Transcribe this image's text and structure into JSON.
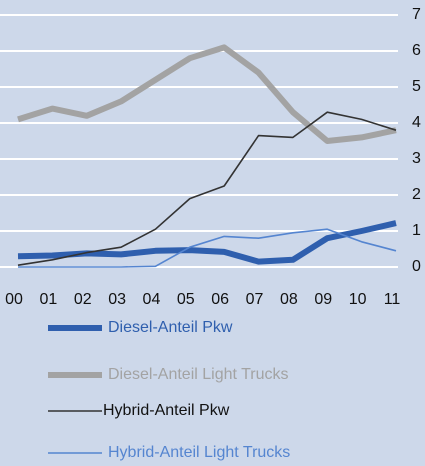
{
  "chart_data": {
    "type": "line",
    "categories": [
      "00",
      "01",
      "02",
      "03",
      "04",
      "05",
      "06",
      "07",
      "08",
      "09",
      "10",
      "11"
    ],
    "series": [
      {
        "name": "Diesel-Anteil Pkw",
        "color": "#2f5fae",
        "values": [
          0.3,
          0.32,
          0.38,
          0.35,
          0.45,
          0.47,
          0.42,
          0.15,
          0.2,
          0.8,
          1.0,
          1.22
        ]
      },
      {
        "name": "Diesel-Anteil Light Trucks",
        "color": "#a3a3a3",
        "values": [
          4.1,
          4.4,
          4.2,
          4.6,
          5.2,
          5.8,
          6.1,
          5.4,
          4.3,
          3.5,
          3.6,
          3.8
        ]
      },
      {
        "name": "Hybrid-Anteil Pkw",
        "color": "#333333",
        "values": [
          0.05,
          0.2,
          0.4,
          0.55,
          1.05,
          1.9,
          2.25,
          3.65,
          3.6,
          4.3,
          4.1,
          3.8
        ]
      },
      {
        "name": "Hybrid-Anteil Light Trucks",
        "color": "#5585d0",
        "values": [
          0,
          0,
          0,
          0,
          0.02,
          0.55,
          0.85,
          0.8,
          0.95,
          1.05,
          0.7,
          0.45
        ]
      }
    ],
    "ylim": [
      0,
      7
    ],
    "yticks": [
      0,
      1,
      2,
      3,
      4,
      5,
      6,
      7
    ],
    "grid": true,
    "legend": "bottom"
  }
}
